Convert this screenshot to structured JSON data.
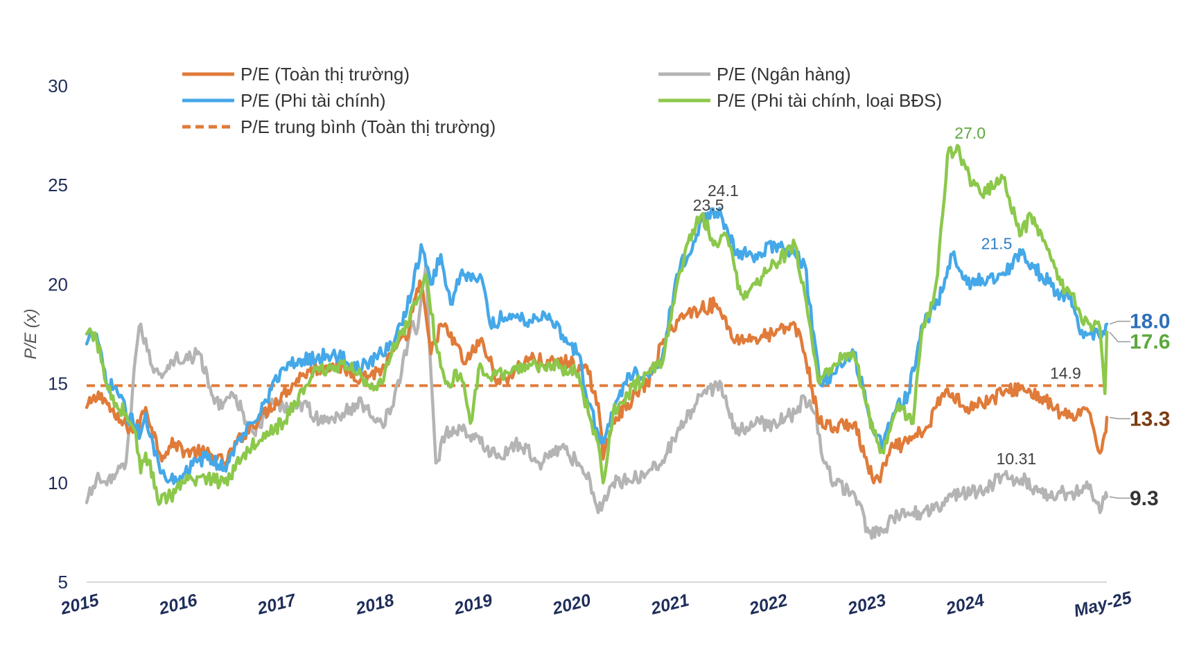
{
  "chart_data": {
    "type": "line",
    "ylabel": "P/E (x)",
    "xlabel": "",
    "ylim": [
      5,
      30
    ],
    "yticks": [
      "5",
      "10",
      "15",
      "20",
      "25",
      "30"
    ],
    "x_tick_labels": [
      "2015",
      "2016",
      "2017",
      "2018",
      "2019",
      "2020",
      "2021",
      "2022",
      "2023",
      "2024",
      "May-25"
    ],
    "xlim": [
      2015.0,
      2025.37
    ],
    "grid": false,
    "legend_position": "top",
    "legend": [
      {
        "name": "P/E (Toàn thị trường)",
        "color": "#e07b39",
        "dash": false
      },
      {
        "name": "P/E (Ngân hàng)",
        "color": "#b4b4b4",
        "dash": false
      },
      {
        "name": "P/E (Phi tài chính)",
        "color": "#45a8e8",
        "dash": false
      },
      {
        "name": "P/E (Phi tài chính, loại BĐS)",
        "color": "#8cc84b",
        "dash": false
      },
      {
        "name": "P/E trung bình (Toàn thị trường)",
        "color": "#e07b39",
        "dash": true
      }
    ],
    "series": [
      {
        "name": "P/E (Toàn thị trường)",
        "color": "#e07b39",
        "x": [
          2015.0,
          2015.15,
          2015.3,
          2015.5,
          2015.6,
          2015.75,
          2015.9,
          2016.0,
          2016.2,
          2016.4,
          2016.6,
          2016.8,
          2017.0,
          2017.2,
          2017.5,
          2017.8,
          2018.0,
          2018.15,
          2018.25,
          2018.33,
          2018.4,
          2018.5,
          2018.6,
          2018.75,
          2018.85,
          2019.0,
          2019.2,
          2019.5,
          2019.7,
          2019.9,
          2020.1,
          2020.2,
          2020.25,
          2020.35,
          2020.5,
          2020.7,
          2020.85,
          2021.0,
          2021.1,
          2021.25,
          2021.4,
          2021.45,
          2021.6,
          2021.8,
          2022.0,
          2022.2,
          2022.3,
          2022.45,
          2022.6,
          2022.8,
          2023.0,
          2023.05,
          2023.2,
          2023.35,
          2023.55,
          2023.7,
          2023.8,
          2023.95,
          2024.1,
          2024.3,
          2024.5,
          2024.7,
          2024.9,
          2025.0,
          2025.1,
          2025.2,
          2025.3,
          2025.35,
          2025.37
        ],
        "y": [
          13.8,
          14.5,
          13.2,
          12.6,
          13.8,
          11.4,
          12.0,
          11.6,
          11.5,
          11.0,
          12.5,
          13.5,
          14.5,
          15.5,
          16.0,
          15.3,
          15.7,
          16.8,
          17.2,
          19.2,
          20.0,
          16.5,
          18.0,
          17.0,
          16.0,
          17.2,
          15.0,
          16.3,
          16.0,
          16.1,
          15.5,
          14.0,
          11.2,
          13.2,
          14.0,
          15.0,
          17.0,
          18.2,
          18.5,
          18.8,
          19.0,
          18.5,
          17.2,
          17.3,
          17.5,
          18.0,
          16.5,
          13.0,
          12.8,
          13.0,
          10.0,
          10.2,
          11.8,
          12.0,
          12.8,
          14.5,
          14.5,
          13.8,
          14.0,
          14.5,
          14.8,
          14.3,
          13.5,
          13.3,
          13.4,
          13.5,
          11.5,
          12.5,
          13.3
        ]
      },
      {
        "name": "P/E (Ngân hàng)",
        "color": "#b4b4b4",
        "x": [
          2015.0,
          2015.1,
          2015.25,
          2015.4,
          2015.5,
          2015.55,
          2015.65,
          2015.75,
          2015.9,
          2016.0,
          2016.15,
          2016.3,
          2016.5,
          2016.7,
          2016.9,
          2017.0,
          2017.2,
          2017.4,
          2017.6,
          2017.8,
          2018.0,
          2018.1,
          2018.2,
          2018.3,
          2018.35,
          2018.45,
          2018.5,
          2018.55,
          2018.65,
          2018.8,
          2019.0,
          2019.2,
          2019.4,
          2019.6,
          2019.8,
          2020.0,
          2020.1,
          2020.2,
          2020.25,
          2020.35,
          2020.5,
          2020.7,
          2020.9,
          2021.0,
          2021.2,
          2021.3,
          2021.45,
          2021.6,
          2021.8,
          2022.0,
          2022.2,
          2022.3,
          2022.4,
          2022.5,
          2022.6,
          2022.8,
          2022.95,
          2023.1,
          2023.2,
          2023.35,
          2023.5,
          2023.7,
          2023.9,
          2024.1,
          2024.3,
          2024.5,
          2024.7,
          2024.9,
          2025.0,
          2025.1,
          2025.2,
          2025.3,
          2025.35,
          2025.37
        ],
        "y": [
          9.0,
          10.2,
          10.0,
          11.0,
          16.5,
          18.0,
          16.0,
          15.5,
          16.3,
          16.2,
          16.5,
          14.0,
          14.3,
          12.5,
          14.0,
          13.8,
          14.0,
          13.0,
          13.5,
          14.0,
          13.0,
          13.8,
          15.5,
          18.0,
          17.5,
          21.0,
          15.5,
          11.0,
          12.5,
          12.8,
          12.0,
          11.3,
          12.0,
          11.0,
          11.8,
          11.0,
          10.5,
          8.5,
          9.0,
          10.0,
          10.2,
          10.5,
          11.5,
          12.5,
          14.0,
          14.5,
          15.0,
          12.5,
          13.0,
          13.0,
          13.5,
          14.3,
          13.5,
          11.0,
          10.0,
          9.5,
          7.5,
          7.5,
          8.2,
          8.5,
          8.5,
          9.0,
          9.5,
          9.5,
          10.3,
          10.2,
          9.5,
          9.5,
          9.5,
          9.6,
          9.9,
          8.5,
          9.2,
          9.3
        ]
      },
      {
        "name": "P/E (Phi tài chính)",
        "color": "#45a8e8",
        "x": [
          2015.0,
          2015.1,
          2015.2,
          2015.3,
          2015.4,
          2015.55,
          2015.6,
          2015.75,
          2015.9,
          2016.0,
          2016.2,
          2016.4,
          2016.6,
          2016.8,
          2017.0,
          2017.2,
          2017.5,
          2017.8,
          2018.0,
          2018.1,
          2018.15,
          2018.3,
          2018.4,
          2018.5,
          2018.6,
          2018.7,
          2018.8,
          2019.0,
          2019.1,
          2019.3,
          2019.5,
          2019.7,
          2019.9,
          2020.0,
          2020.1,
          2020.2,
          2020.25,
          2020.35,
          2020.5,
          2020.7,
          2020.85,
          2021.0,
          2021.2,
          2021.35,
          2021.45,
          2021.6,
          2021.8,
          2022.0,
          2022.2,
          2022.3,
          2022.45,
          2022.6,
          2022.8,
          2023.0,
          2023.1,
          2023.2,
          2023.35,
          2023.5,
          2023.65,
          2023.8,
          2023.95,
          2024.1,
          2024.3,
          2024.5,
          2024.7,
          2024.9,
          2025.0,
          2025.1,
          2025.2,
          2025.3,
          2025.35,
          2025.37
        ],
        "y": [
          17.0,
          17.5,
          15.0,
          14.8,
          13.5,
          12.5,
          13.5,
          10.5,
          10.3,
          10.5,
          11.3,
          10.8,
          12.5,
          14.0,
          15.8,
          16.2,
          16.5,
          15.8,
          16.5,
          17.0,
          17.5,
          19.5,
          22.0,
          20.0,
          21.5,
          19.0,
          20.5,
          20.5,
          18.0,
          18.5,
          18.2,
          18.5,
          17.0,
          16.5,
          14.0,
          12.5,
          12.0,
          13.5,
          15.5,
          15.5,
          16.3,
          20.5,
          22.5,
          23.8,
          23.5,
          21.5,
          21.5,
          22.0,
          21.5,
          21.0,
          15.0,
          15.5,
          16.5,
          12.5,
          12.0,
          13.5,
          14.5,
          18.0,
          19.0,
          21.5,
          20.0,
          20.3,
          20.5,
          21.5,
          20.5,
          19.5,
          19.5,
          17.5,
          17.5,
          17.3,
          17.5,
          18.0
        ]
      },
      {
        "name": "P/E (Phi tài chính, loại BĐS)",
        "color": "#8cc84b",
        "x": [
          2015.0,
          2015.1,
          2015.2,
          2015.3,
          2015.4,
          2015.5,
          2015.55,
          2015.6,
          2015.75,
          2015.9,
          2016.0,
          2016.2,
          2016.4,
          2016.6,
          2016.8,
          2017.0,
          2017.3,
          2017.6,
          2017.9,
          2018.0,
          2018.1,
          2018.2,
          2018.35,
          2018.45,
          2018.55,
          2018.65,
          2018.8,
          2018.9,
          2019.0,
          2019.1,
          2019.3,
          2019.5,
          2019.8,
          2020.0,
          2020.1,
          2020.2,
          2020.25,
          2020.35,
          2020.5,
          2020.7,
          2020.85,
          2021.0,
          2021.1,
          2021.25,
          2021.4,
          2021.5,
          2021.65,
          2021.8,
          2022.0,
          2022.2,
          2022.3,
          2022.45,
          2022.6,
          2022.8,
          2023.0,
          2023.1,
          2023.15,
          2023.25,
          2023.4,
          2023.5,
          2023.6,
          2023.65,
          2023.75,
          2023.85,
          2024.0,
          2024.1,
          2024.3,
          2024.5,
          2024.6,
          2024.75,
          2024.9,
          2025.0,
          2025.1,
          2025.2,
          2025.3,
          2025.35,
          2025.37
        ],
        "y": [
          17.5,
          17.3,
          15.0,
          14.0,
          13.5,
          12.5,
          10.5,
          11.5,
          9.0,
          9.5,
          10.0,
          10.3,
          10.0,
          11.5,
          12.5,
          13.0,
          15.5,
          16.0,
          15.0,
          15.0,
          16.5,
          17.5,
          19.0,
          20.5,
          17.0,
          15.0,
          15.5,
          13.0,
          16.0,
          15.3,
          15.5,
          16.0,
          15.8,
          15.5,
          13.5,
          12.0,
          10.0,
          13.5,
          14.5,
          15.5,
          16.0,
          20.0,
          22.0,
          23.5,
          22.0,
          22.5,
          19.5,
          20.0,
          21.0,
          22.0,
          19.5,
          15.0,
          16.0,
          16.5,
          12.5,
          11.5,
          12.5,
          14.0,
          13.0,
          18.0,
          19.0,
          20.5,
          26.5,
          27.0,
          25.0,
          24.5,
          25.5,
          22.5,
          23.5,
          22.0,
          20.0,
          19.5,
          18.5,
          18.0,
          17.8,
          14.5,
          17.6
        ]
      },
      {
        "name": "P/E trung bình (Toàn thị trường)",
        "color": "#e07b39",
        "dash": true,
        "x": [
          2015.0,
          2025.37
        ],
        "y": [
          14.9,
          14.9
        ]
      }
    ],
    "annotations": [
      {
        "text": "24.1",
        "x": 2021.47,
        "y": 24.1,
        "color": "#404040"
      },
      {
        "text": "23.5",
        "x": 2021.32,
        "y": 23.5,
        "color": "#404040"
      },
      {
        "text": "27.0",
        "x": 2023.98,
        "y": 27.0,
        "color": "#5ba83c"
      },
      {
        "text": "21.5",
        "x": 2024.25,
        "y": 21.5,
        "color": "#2f7fc4"
      },
      {
        "text": "14.9",
        "x": 2024.95,
        "y": 14.9,
        "color": "#404040"
      },
      {
        "text": "10.31",
        "x": 2024.45,
        "y": 10.31,
        "color": "#404040"
      }
    ],
    "end_labels": [
      {
        "text": "18.0",
        "series": "P/E (Phi tài chính)",
        "y": 18.0,
        "color": "#2f6fb8"
      },
      {
        "text": "17.6",
        "series": "P/E (Phi tài chính, loại BĐS)",
        "y": 17.6,
        "color": "#5ba83c"
      },
      {
        "text": "13.3",
        "series": "P/E (Toàn thị trường)",
        "y": 13.3,
        "color": "#7a3b12"
      },
      {
        "text": "9.3",
        "series": "P/E (Ngân hàng)",
        "y": 9.3,
        "color": "#333333"
      }
    ]
  }
}
